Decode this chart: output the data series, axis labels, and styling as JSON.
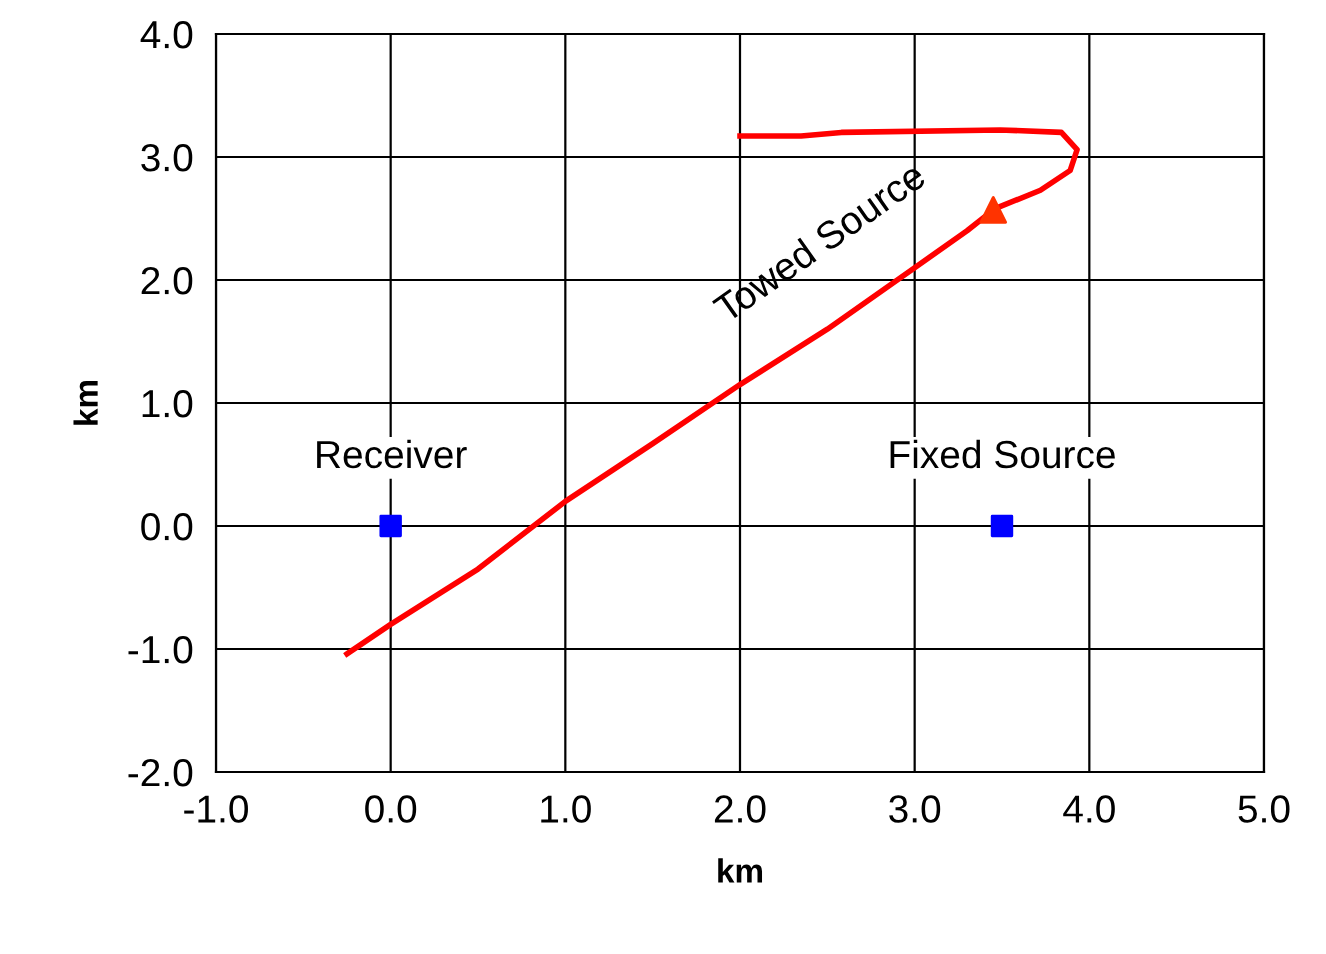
{
  "chart_data": {
    "type": "line",
    "xlabel": "km",
    "ylabel": "km",
    "series": [
      {
        "name": "Towed Source",
        "color": "#ff0000",
        "marker": "none",
        "x": [
          -0.25,
          0.0,
          0.5,
          1.0,
          1.5,
          2.0,
          2.5,
          3.0,
          3.3,
          3.46,
          3.72,
          3.89,
          3.93,
          3.84,
          3.49,
          2.58,
          2.35,
          2.0
        ],
        "values": [
          -1.04,
          -0.8,
          -0.35,
          0.2,
          0.67,
          1.15,
          1.6,
          2.1,
          2.4,
          2.58,
          2.73,
          2.89,
          3.06,
          3.2,
          3.22,
          3.2,
          3.17,
          3.17
        ]
      },
      {
        "type": "scatter",
        "color": "#ff3300",
        "marker": "triangle",
        "x": [
          3.45
        ],
        "values": [
          2.57
        ]
      },
      {
        "name": "Receiver",
        "type": "scatter",
        "color": "#0000ff",
        "marker": "square",
        "x": [
          0.0
        ],
        "values": [
          0.0
        ]
      },
      {
        "name": "Fixed Source",
        "type": "scatter",
        "color": "#0000ff",
        "marker": "square",
        "x": [
          3.5
        ],
        "values": [
          0.0
        ]
      }
    ],
    "xlim": [
      -1,
      5
    ],
    "ylim": [
      -2,
      4
    ],
    "xticks": [
      {
        "value": -1,
        "label": "-1.0"
      },
      {
        "value": 0,
        "label": "0.0"
      },
      {
        "value": 1,
        "label": "1.0"
      },
      {
        "value": 2,
        "label": "2.0"
      },
      {
        "value": 3,
        "label": "3.0"
      },
      {
        "value": 4,
        "label": "4.0"
      },
      {
        "value": 5,
        "label": "5.0"
      }
    ],
    "yticks": [
      {
        "value": -2,
        "label": "-2.0"
      },
      {
        "value": -1,
        "label": "-1.0"
      },
      {
        "value": 0,
        "label": "0.0"
      },
      {
        "value": 1,
        "label": "1.0"
      },
      {
        "value": 2,
        "label": "2.0"
      },
      {
        "value": 3,
        "label": "3.0"
      },
      {
        "value": 4,
        "label": "4.0"
      }
    ],
    "grid": true,
    "legend": false
  }
}
